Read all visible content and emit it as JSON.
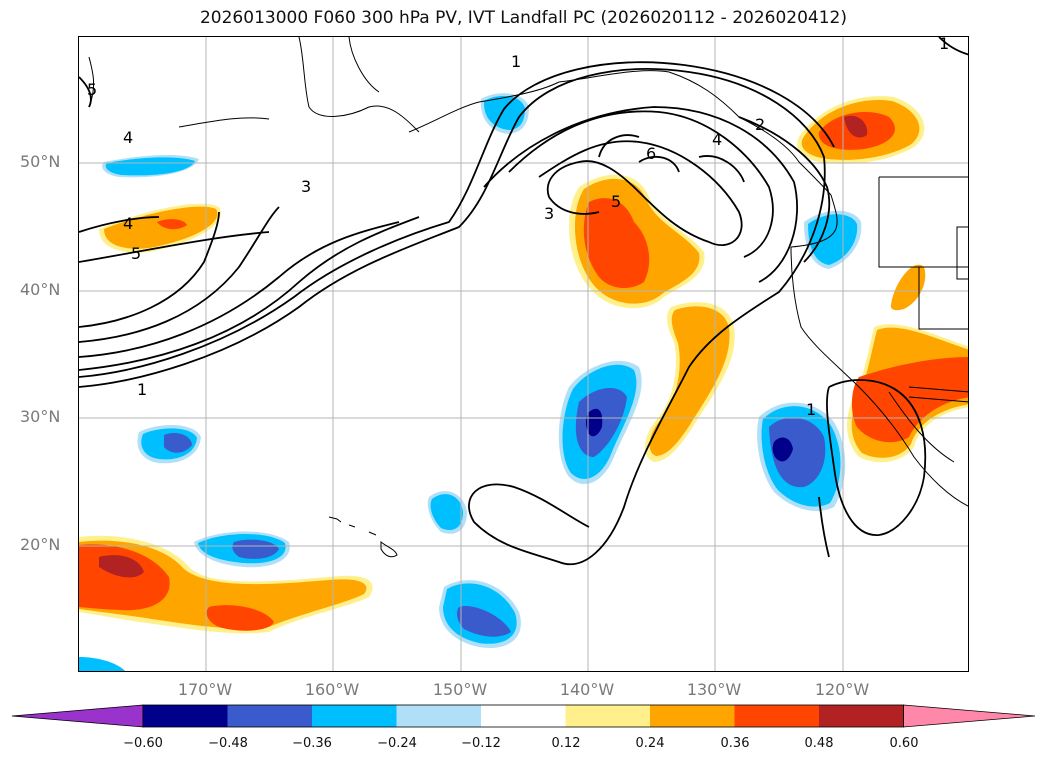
{
  "title": "2026013000 F060 300 hPa PV, IVT Landfall PC (2026020112 - 2026020412)",
  "map": {
    "lat_labels": [
      "50°N",
      "40°N",
      "30°N",
      "20°N"
    ],
    "lon_labels": [
      "170°W",
      "160°W",
      "150°W",
      "140°W",
      "130°W",
      "120°W"
    ],
    "gridlines": true,
    "contour_labels": [
      "1",
      "1",
      "1",
      "1",
      "2",
      "3",
      "3",
      "4",
      "4",
      "4",
      "5",
      "5",
      "5",
      "6"
    ]
  },
  "colorbar": {
    "ticks": [
      "−0.60",
      "−0.48",
      "−0.36",
      "−0.24",
      "−0.12",
      "0.12",
      "0.24",
      "0.36",
      "0.48",
      "0.60"
    ],
    "colors": [
      "#9933cc",
      "#00008b",
      "#3a5bcc",
      "#00bfff",
      "#b0e0f8",
      "#ffffff",
      "#fff08c",
      "#ffa500",
      "#ff4500",
      "#b22222",
      "#ff88aa"
    ]
  },
  "colors": {
    "orange": "#ffa500",
    "red_orange": "#ff4500",
    "dark_red": "#b22222",
    "light_yellow": "#fff08c",
    "navy": "#00008b",
    "royal_blue": "#3a5bcc",
    "deep_sky": "#00bfff",
    "pale_blue": "#b0e0f8"
  }
}
